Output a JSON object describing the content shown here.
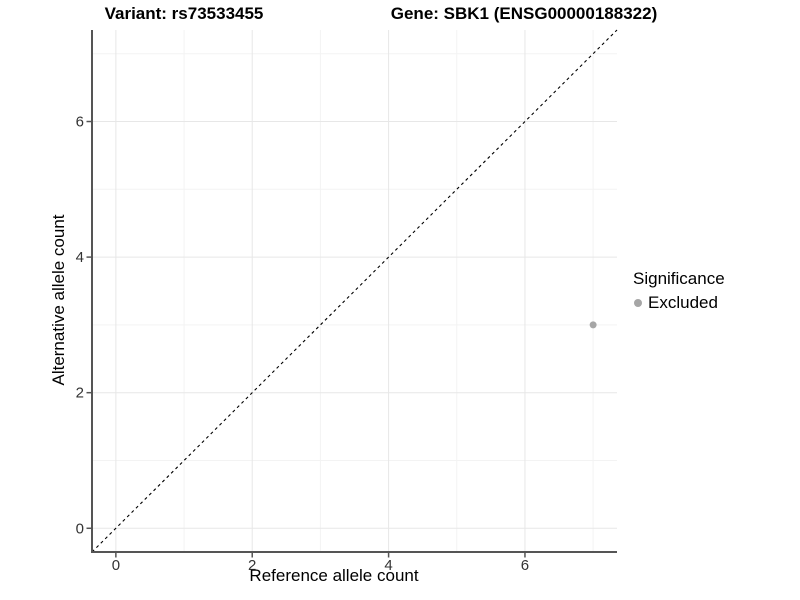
{
  "titles": {
    "variant": "Variant: rs73533455",
    "gene": "Gene: SBK1 (ENSG00000188322)"
  },
  "axes": {
    "x_label": "Reference allele count",
    "y_label": "Alternative allele count"
  },
  "legend": {
    "title": "Significance",
    "items": [
      {
        "label": "Excluded",
        "color": "#a6a6a6"
      }
    ]
  },
  "colors": {
    "point": "#a6a6a6",
    "grid_major": "#e7e7e7",
    "grid_minor": "#f3f3f3",
    "axis": "#555555",
    "tick_label": "#333333",
    "reference_line": "#000000"
  },
  "chart_data": {
    "type": "scatter",
    "title": "Variant: rs73533455 — Gene: SBK1 (ENSG00000188322)",
    "xlabel": "Reference allele count",
    "ylabel": "Alternative allele count",
    "xlim": [
      -0.35,
      7.35
    ],
    "ylim": [
      -0.35,
      7.35
    ],
    "x_major_ticks": [
      0,
      2,
      4,
      6
    ],
    "x_minor_ticks": [
      1,
      3,
      5,
      7
    ],
    "y_major_ticks": [
      0,
      2,
      4,
      6
    ],
    "y_minor_ticks": [
      1,
      3,
      5,
      7
    ],
    "grid": true,
    "legend_position": "right",
    "series": [
      {
        "name": "Excluded",
        "color": "#a6a6a6",
        "points": [
          {
            "x": 7,
            "y": 3
          }
        ]
      }
    ],
    "reference_line": {
      "type": "identity",
      "style": "dashed",
      "from": [
        -0.35,
        -0.35
      ],
      "to": [
        7.35,
        7.35
      ],
      "color": "#000000"
    }
  }
}
